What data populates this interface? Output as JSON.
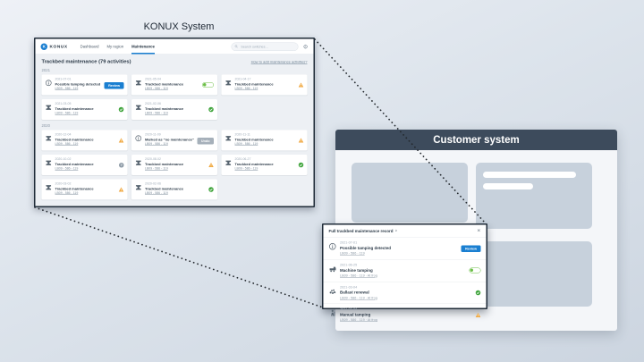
{
  "labels": {
    "konux_system": "KONUX System"
  },
  "colors": {
    "accent_blue": "#1a7fd1",
    "success_green": "#3fa43b",
    "toggle_green": "#6cbf47",
    "warning_orange": "#f0a63b",
    "undo_gray": "#a6b0ba",
    "customer_header": "#3d4b5c"
  },
  "konux": {
    "brand": "KONUX",
    "logo_glyph": "K",
    "nav": [
      {
        "label": "Dashboard",
        "active": false
      },
      {
        "label": "My region",
        "active": false
      },
      {
        "label": "Maintenance",
        "active": true
      }
    ],
    "search_placeholder": "Search switches...",
    "title": "Trackbed maintenance (79 activities)",
    "help_link": "How to add maintenance activities?",
    "sections": [
      {
        "year": "2021",
        "cards": [
          {
            "icon": "info",
            "date": "2021-07-01",
            "title": "Possible tamping detected",
            "link": "LB09 - 586 - 119",
            "status": "review",
            "status_label": "Review"
          },
          {
            "icon": "rail",
            "date": "2021-05-04",
            "title": "Trackbed maintenance",
            "link": "LB09 - 586 - 119",
            "status": "toggle"
          },
          {
            "icon": "rail",
            "date": "2021-04-17",
            "title": "Trackbed maintenance",
            "link": "LB09 - 586 - 119",
            "status": "warning"
          },
          {
            "icon": "rail",
            "date": "2021-03-05",
            "title": "Trackbed maintenance",
            "link": "LB09 - 586 - 119",
            "status": "check"
          },
          {
            "icon": "rail",
            "date": "2021-02-06",
            "title": "Trackbed maintenance",
            "link": "LB09 - 586 - 119",
            "status": "check"
          }
        ]
      },
      {
        "year": "2020",
        "cards": [
          {
            "icon": "rail",
            "date": "2020-12-04",
            "title": "Trackbed maintenance",
            "link": "LB09 - 586 - 119",
            "status": "warning"
          },
          {
            "icon": "info",
            "date": "2020-11-09",
            "title": "Marked as \"no maintenance\"",
            "link": "LB09 - 586 - 119",
            "status": "undo",
            "status_label": "Undo"
          },
          {
            "icon": "rail",
            "date": "2020-11-11",
            "title": "Trackbed maintenance",
            "link": "LB09 - 586 - 119",
            "status": "warning"
          },
          {
            "icon": "rail",
            "date": "2020-10-02",
            "title": "Trackbed maintenance",
            "link": "LB09 - 586 - 119",
            "status": "question"
          },
          {
            "icon": "rail",
            "date": "2020-08-02",
            "title": "Trackbed maintenance",
            "link": "LB09 - 586 - 119",
            "status": "warning"
          },
          {
            "icon": "rail",
            "date": "2020-06-27",
            "title": "Trackbed maintenance",
            "link": "LB09 - 586 - 119",
            "status": "check"
          },
          {
            "icon": "rail",
            "date": "2020-03-02",
            "title": "Trackbed maintenance",
            "link": "LB09 - 586 - 119",
            "status": "warning"
          },
          {
            "icon": "rail",
            "date": "2020-02-06",
            "title": "Trackbed maintenance",
            "link": "LB09 - 586 - 119",
            "status": "check"
          }
        ]
      }
    ]
  },
  "popup": {
    "title": "Full trackbed maintenance record",
    "rows": [
      {
        "icon": "info",
        "date": "2021-07-01",
        "title": "Possible tamping detected",
        "sub": "LB09 - 586 - 119",
        "status": "review",
        "status_label": "Review"
      },
      {
        "icon": "machine",
        "date": "2021-06-25",
        "title": "Machine tamping",
        "sub": "LB09 - 586 - 119 · At frog",
        "status": "toggle"
      },
      {
        "icon": "ballast",
        "date": "2021-03-04",
        "title": "Ballast renewal",
        "sub": "LB09 - 586 - 119 · At frog",
        "status": "check"
      },
      {
        "icon": "manual",
        "date": "2021-03-04",
        "title": "Manual tamping",
        "sub": "LB09 - 586 - 119 · At frog",
        "status": "warning"
      }
    ]
  },
  "customer": {
    "title": "Customer system"
  }
}
